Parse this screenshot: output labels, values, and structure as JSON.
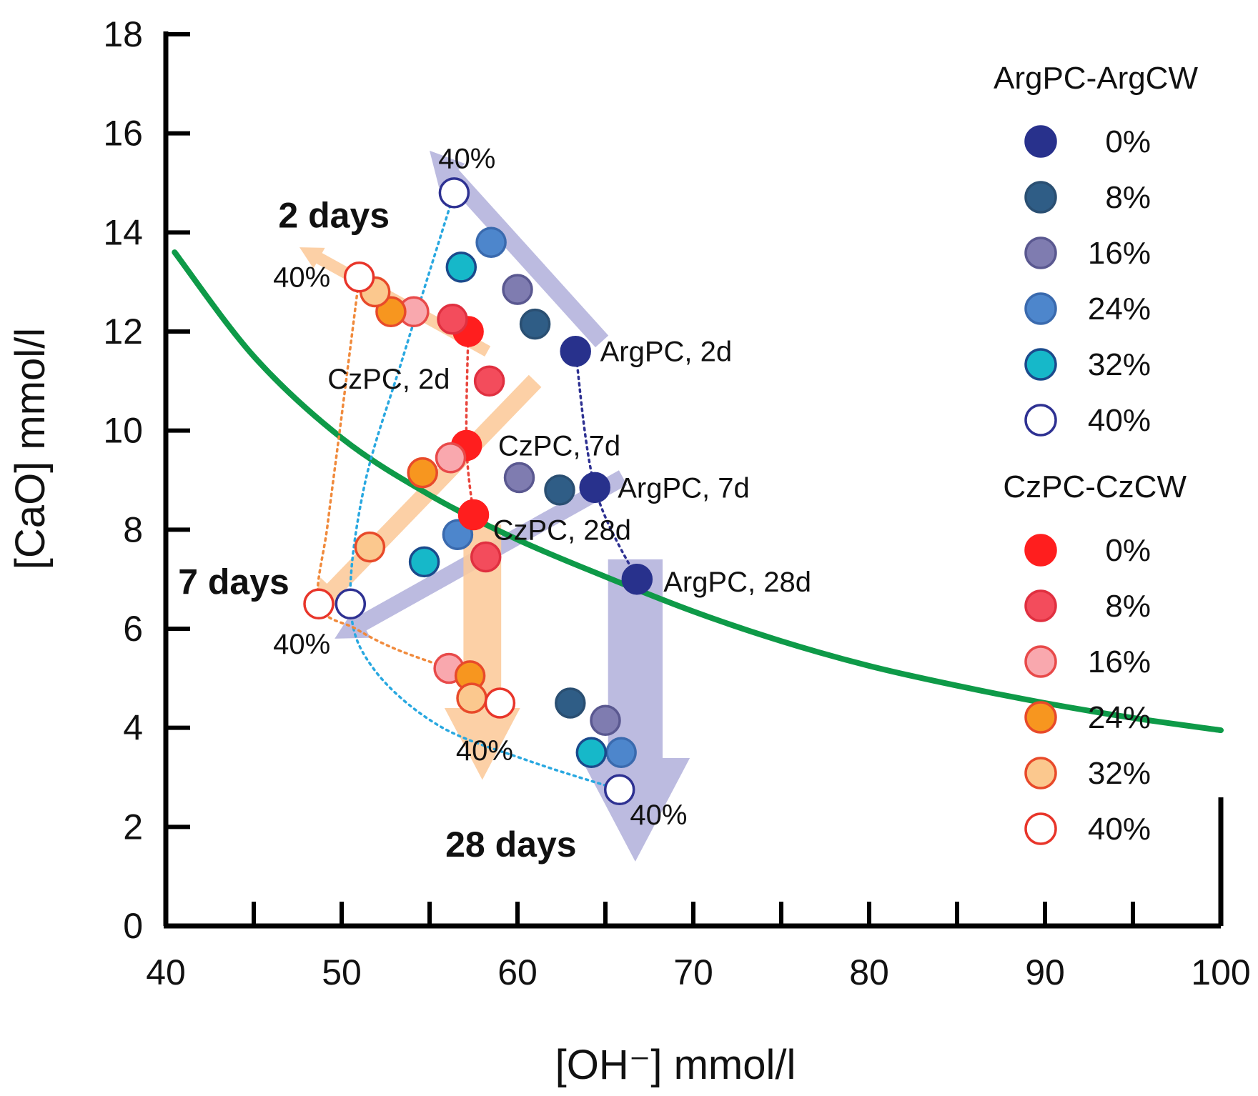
{
  "chart_data": {
    "type": "scatter",
    "title": "",
    "xlabel": "[OH⁻] mmol/l",
    "ylabel": "[CaO] mmol/l",
    "xlim": [
      40,
      100
    ],
    "ylim": [
      0,
      18
    ],
    "x_ticks": [
      "40",
      "50",
      "60",
      "70",
      "80",
      "90",
      "100"
    ],
    "y_ticks": [
      "0",
      "2",
      "4",
      "6",
      "8",
      "10",
      "12",
      "14",
      "16",
      "18"
    ],
    "grid": false,
    "legend_position": "right",
    "colors": {
      "green_curve": "#0e9a48",
      "arg_arrow": "#b3b2dc",
      "cz_arrow": "#fcc99a",
      "arg_path": "#2e3192",
      "cz_path": "#e8453c",
      "arg40_path": "#29a8e0",
      "cz40_path": "#f08a3c"
    },
    "solubility_curve": {
      "x": [
        40.5,
        45,
        50,
        55,
        60,
        65,
        70,
        75,
        80,
        85,
        90,
        95,
        100
      ],
      "y": [
        13.6,
        11.5,
        9.85,
        8.7,
        7.8,
        7.05,
        6.35,
        5.75,
        5.25,
        4.85,
        4.5,
        4.2,
        3.95
      ]
    },
    "legend": [
      {
        "title": "ArgPC-ArgCW",
        "entries": [
          {
            "label": "0%",
            "fill": "#28318c",
            "stroke": "#28318c"
          },
          {
            "label": " 8%",
            "fill": "#2f5d86",
            "stroke": "#2a4f72"
          },
          {
            "label": "16%",
            "fill": "#7f7cb0",
            "stroke": "#5a5890"
          },
          {
            "label": "24%",
            "fill": "#4d86cc",
            "stroke": "#3a6aae"
          },
          {
            "label": "32%",
            "fill": "#16b8c9",
            "stroke": "#1b4a8c"
          },
          {
            "label": "40%",
            "fill": "#ffffff",
            "stroke": "#2e3192"
          }
        ]
      },
      {
        "title": "CzPC-CzCW",
        "entries": [
          {
            "label": "0%",
            "fill": "#ff1e1e",
            "stroke": "#ff1e1e"
          },
          {
            "label": " 8%",
            "fill": "#f34c5c",
            "stroke": "#e03040"
          },
          {
            "label": "16%",
            "fill": "#f9a8ae",
            "stroke": "#e84a4a"
          },
          {
            "label": "24%",
            "fill": "#f7961f",
            "stroke": "#e84a2a"
          },
          {
            "label": "32%",
            "fill": "#fbc88e",
            "stroke": "#e84a2a"
          },
          {
            "label": "40%",
            "fill": "#ffffff",
            "stroke": "#e8352a"
          }
        ]
      }
    ],
    "series": [
      {
        "group": 0,
        "level": 0,
        "x": [
          63.3,
          64.4,
          66.8
        ],
        "y": [
          11.6,
          8.85,
          7.0
        ]
      },
      {
        "group": 0,
        "level": 1,
        "x": [
          61.0,
          62.4,
          63.0
        ],
        "y": [
          12.15,
          8.8,
          4.5
        ]
      },
      {
        "group": 0,
        "level": 2,
        "x": [
          60.0,
          60.1,
          65.0
        ],
        "y": [
          12.85,
          9.05,
          4.15
        ]
      },
      {
        "group": 0,
        "level": 3,
        "x": [
          58.5,
          56.6,
          65.9
        ],
        "y": [
          13.8,
          7.9,
          3.5
        ]
      },
      {
        "group": 0,
        "level": 4,
        "x": [
          56.8,
          54.7,
          64.2
        ],
        "y": [
          13.3,
          7.35,
          3.5
        ]
      },
      {
        "group": 0,
        "level": 5,
        "x": [
          56.4,
          50.5,
          65.8
        ],
        "y": [
          14.8,
          6.5,
          2.75
        ]
      },
      {
        "group": 1,
        "level": 0,
        "x": [
          57.2,
          57.1,
          57.5
        ],
        "y": [
          12.0,
          9.7,
          8.3
        ]
      },
      {
        "group": 1,
        "level": 1,
        "x": [
          56.3,
          58.4,
          58.2
        ],
        "y": [
          12.25,
          11.0,
          7.45
        ]
      },
      {
        "group": 1,
        "level": 2,
        "x": [
          54.1,
          56.2,
          56.1
        ],
        "y": [
          12.4,
          9.45,
          5.2
        ]
      },
      {
        "group": 1,
        "level": 3,
        "x": [
          52.8,
          54.6,
          57.3
        ],
        "y": [
          12.4,
          9.15,
          5.05
        ]
      },
      {
        "group": 1,
        "level": 4,
        "x": [
          51.9,
          51.6,
          57.4
        ],
        "y": [
          12.8,
          7.65,
          4.6
        ]
      },
      {
        "group": 1,
        "level": 5,
        "x": [
          51.0,
          48.7,
          59.0
        ],
        "y": [
          13.1,
          6.5,
          4.5
        ]
      }
    ],
    "trend_paths": [
      {
        "name": "arg-0-path",
        "color": "#2e3192",
        "points": [
          [
            63.3,
            11.6
          ],
          [
            64.4,
            8.85
          ],
          [
            66.8,
            7.0
          ]
        ]
      },
      {
        "name": "cz-0-path",
        "color": "#e8453c",
        "points": [
          [
            57.2,
            12.0
          ],
          [
            57.1,
            9.7
          ],
          [
            57.5,
            8.3
          ]
        ]
      },
      {
        "name": "arg-40-path",
        "color": "#29a8e0",
        "points": [
          [
            56.4,
            14.8
          ],
          [
            53.5,
            11.5
          ],
          [
            51.3,
            8.9
          ],
          [
            50.5,
            6.5
          ],
          [
            51.8,
            5.2
          ],
          [
            55.5,
            4.05
          ],
          [
            60.5,
            3.35
          ],
          [
            65.8,
            2.75
          ]
        ]
      },
      {
        "name": "cz-40-path",
        "color": "#f08a3c",
        "points": [
          [
            51.0,
            13.1
          ],
          [
            50.0,
            10.3
          ],
          [
            49.2,
            8.1
          ],
          [
            48.7,
            6.5
          ],
          [
            50.8,
            6.0
          ],
          [
            53.0,
            5.6
          ],
          [
            56.1,
            5.2
          ]
        ]
      }
    ],
    "arrows": [
      {
        "name": "arg-2d-arrow",
        "color": "#b3b2dc",
        "tail": [
          64.8,
          11.8
        ],
        "head": [
          55.0,
          15.65
        ],
        "width": 2.0
      },
      {
        "name": "cz-2d-arrow",
        "color": "#fcc99a",
        "tail": [
          58.3,
          11.6
        ],
        "head": [
          47.6,
          13.7
        ],
        "width": 1.35
      },
      {
        "name": "cz-7d-arrow",
        "color": "#fcc99a",
        "tail": [
          61.0,
          11.0
        ],
        "head": [
          48.2,
          6.3
        ],
        "width": 2.0
      },
      {
        "name": "arg-7d-arrow",
        "color": "#b3b2dc",
        "tail": [
          66.0,
          9.05
        ],
        "head": [
          49.6,
          5.8
        ],
        "width": 1.9
      },
      {
        "name": "cz-28d-arrow",
        "color": "#fcc99a",
        "tail": [
          58.0,
          8.1
        ],
        "head": [
          58.0,
          2.95
        ],
        "width": 4.3
      },
      {
        "name": "arg-28d-arrow",
        "color": "#b3b2dc",
        "tail": [
          66.7,
          7.4
        ],
        "head": [
          66.7,
          1.3
        ],
        "width": 6.2
      }
    ],
    "annotations": [
      {
        "name": "label-2-days",
        "text": "2 days",
        "x": 46.4,
        "y": 14.3,
        "style": "bold"
      },
      {
        "name": "label-7-days",
        "text": "7 days",
        "x": 40.7,
        "y": 6.9,
        "style": "bold"
      },
      {
        "name": "label-28-days",
        "text": "28 days",
        "x": 55.9,
        "y": 1.6,
        "style": "bold"
      },
      {
        "name": "label-argpc-2d",
        "text": "ArgPC, 2d",
        "x": 64.7,
        "y": 11.6,
        "style": "normal"
      },
      {
        "name": "label-argpc-7d",
        "text": "ArgPC, 7d",
        "x": 65.7,
        "y": 8.85,
        "style": "normal"
      },
      {
        "name": "label-argpc-28d",
        "text": "ArgPC, 28d",
        "x": 68.3,
        "y": 6.95,
        "style": "normal"
      },
      {
        "name": "label-czpc-2d",
        "text": "CzPC, 2d",
        "x": 49.2,
        "y": 11.05,
        "style": "normal"
      },
      {
        "name": "label-czpc-7d",
        "text": "CzPC, 7d",
        "x": 58.9,
        "y": 9.7,
        "style": "normal"
      },
      {
        "name": "label-czpc-28d",
        "text": "CzPC, 28d",
        "x": 58.6,
        "y": 8.0,
        "style": "normal"
      },
      {
        "name": "label-40pct-top-arg",
        "text": "40%",
        "x": 55.5,
        "y": 15.5,
        "style": "normal"
      },
      {
        "name": "label-40pct-top-cz",
        "text": "40%",
        "x": 46.1,
        "y": 13.1,
        "style": "normal"
      },
      {
        "name": "label-40pct-7d",
        "text": "40%",
        "x": 46.1,
        "y": 5.7,
        "style": "normal"
      },
      {
        "name": "label-40pct-28d-cz",
        "text": "40%",
        "x": 56.5,
        "y": 3.55,
        "style": "normal"
      },
      {
        "name": "label-40pct-28d-arg",
        "text": "40%",
        "x": 66.4,
        "y": 2.25,
        "style": "normal"
      }
    ]
  }
}
